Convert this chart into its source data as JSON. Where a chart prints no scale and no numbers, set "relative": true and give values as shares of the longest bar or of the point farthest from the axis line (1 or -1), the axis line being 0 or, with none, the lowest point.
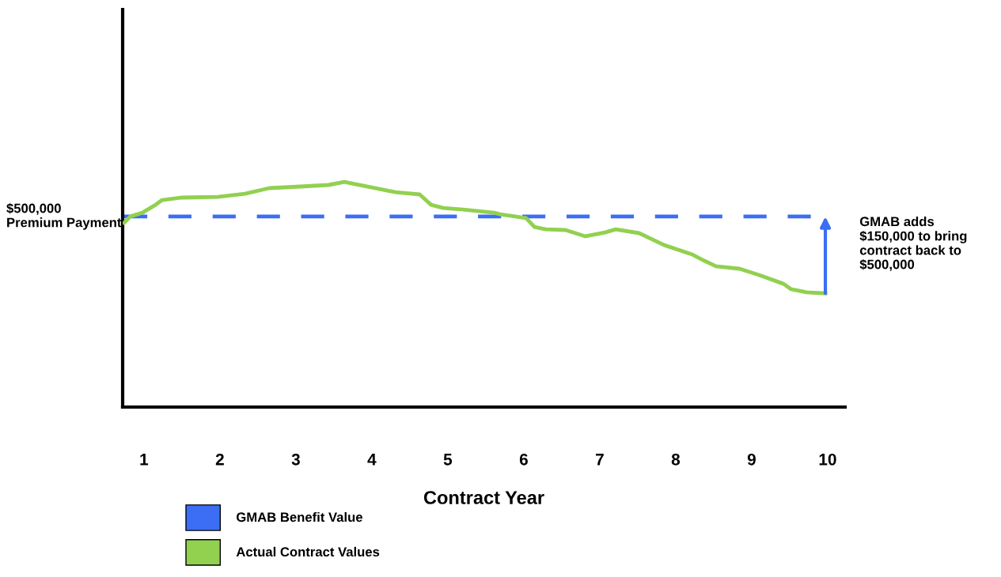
{
  "chart_data": {
    "type": "line",
    "relative": true,
    "xlabel": "Contract Year",
    "xlim": [
      0.72,
      10.23
    ],
    "xticks": [
      1,
      2,
      3,
      4,
      5,
      6,
      7,
      8,
      9,
      10
    ],
    "x": [
      0.74,
      0.82,
      0.98,
      1.14,
      1.24,
      1.5,
      1.97,
      2.33,
      2.65,
      3.06,
      3.43,
      3.64,
      3.79,
      4.31,
      4.63,
      4.78,
      4.94,
      5.2,
      5.61,
      5.69,
      6.03,
      6.14,
      6.29,
      6.55,
      6.81,
      7.07,
      7.21,
      7.52,
      7.85,
      8.22,
      8.38,
      8.53,
      8.84,
      9.1,
      9.42,
      9.52,
      9.73,
      9.97
    ],
    "series": [
      {
        "name": "GMAB Benefit Value",
        "color": "#3b6ef5",
        "line_style": "dashed",
        "x": [
          0.74,
          9.97
        ],
        "values": [
          0.846,
          0.846
        ]
      },
      {
        "name": "Actual Contract Values",
        "color": "#92d050",
        "values": [
          0.818,
          0.846,
          0.863,
          0.895,
          0.919,
          0.93,
          0.933,
          0.947,
          0.972,
          0.979,
          0.986,
          1.0,
          0.989,
          0.954,
          0.944,
          0.898,
          0.884,
          0.877,
          0.863,
          0.856,
          0.839,
          0.8,
          0.789,
          0.786,
          0.758,
          0.775,
          0.789,
          0.772,
          0.719,
          0.677,
          0.649,
          0.625,
          0.614,
          0.586,
          0.547,
          0.523,
          0.509,
          0.505
        ]
      }
    ],
    "annotations": [
      "$500,000\nPremium Payment",
      "GMAB adds\n$150,000 to bring\ncontract back to\n$500,000"
    ],
    "legend": "bottom left",
    "grid": false,
    "marker": "none",
    "line_style": "solid"
  }
}
